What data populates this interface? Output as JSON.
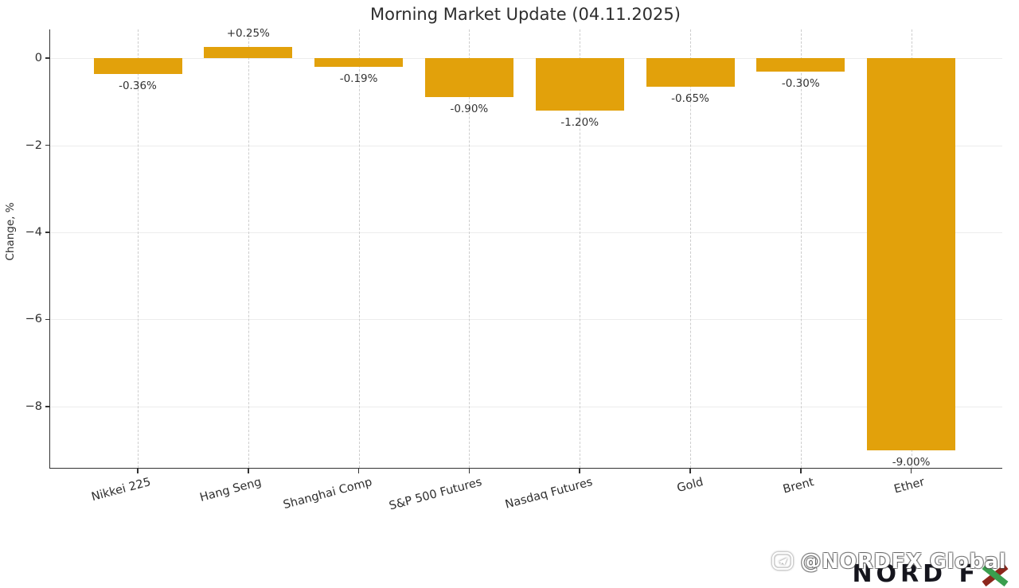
{
  "title": "Morning Market Update (04.11.2025)",
  "chart_data": {
    "type": "bar",
    "title": "Morning Market Update (04.11.2025)",
    "categories": [
      "Nikkei 225",
      "Hang Seng",
      "Shanghai Comp",
      "S&P 500 Futures",
      "Nasdaq Futures",
      "Gold",
      "Brent",
      "Ether"
    ],
    "values": [
      -0.36,
      0.25,
      -0.19,
      -0.9,
      -1.2,
      -0.65,
      -0.3,
      -9.0
    ],
    "value_labels": [
      "-0.36%",
      "+0.25%",
      "-0.19%",
      "-0.90%",
      "-1.20%",
      "-0.65%",
      "-0.30%",
      "-9.00%"
    ],
    "xlabel": "",
    "ylabel": "Change, %",
    "ylim": [
      -9.41,
      0.66
    ],
    "yticks": [
      0,
      -2,
      -4,
      -6,
      -8
    ],
    "ytick_labels": [
      "0",
      "−2",
      "−4",
      "−6",
      "−8"
    ],
    "bar_color": "#E2A10B",
    "grid": true,
    "legend": null
  },
  "watermark": {
    "handle": "@NORDFX Global",
    "logo": "NORD FX",
    "logo_prefix": "NORD F",
    "icons": {
      "telegram_bubble": "telegram-icon",
      "logo_x": "nordfx-x-icon"
    },
    "colors": {
      "logo_dark": "#15151d",
      "x_green": "#3a9e4e",
      "x_red": "#8c261b",
      "handle_white": "#ffffff"
    }
  }
}
